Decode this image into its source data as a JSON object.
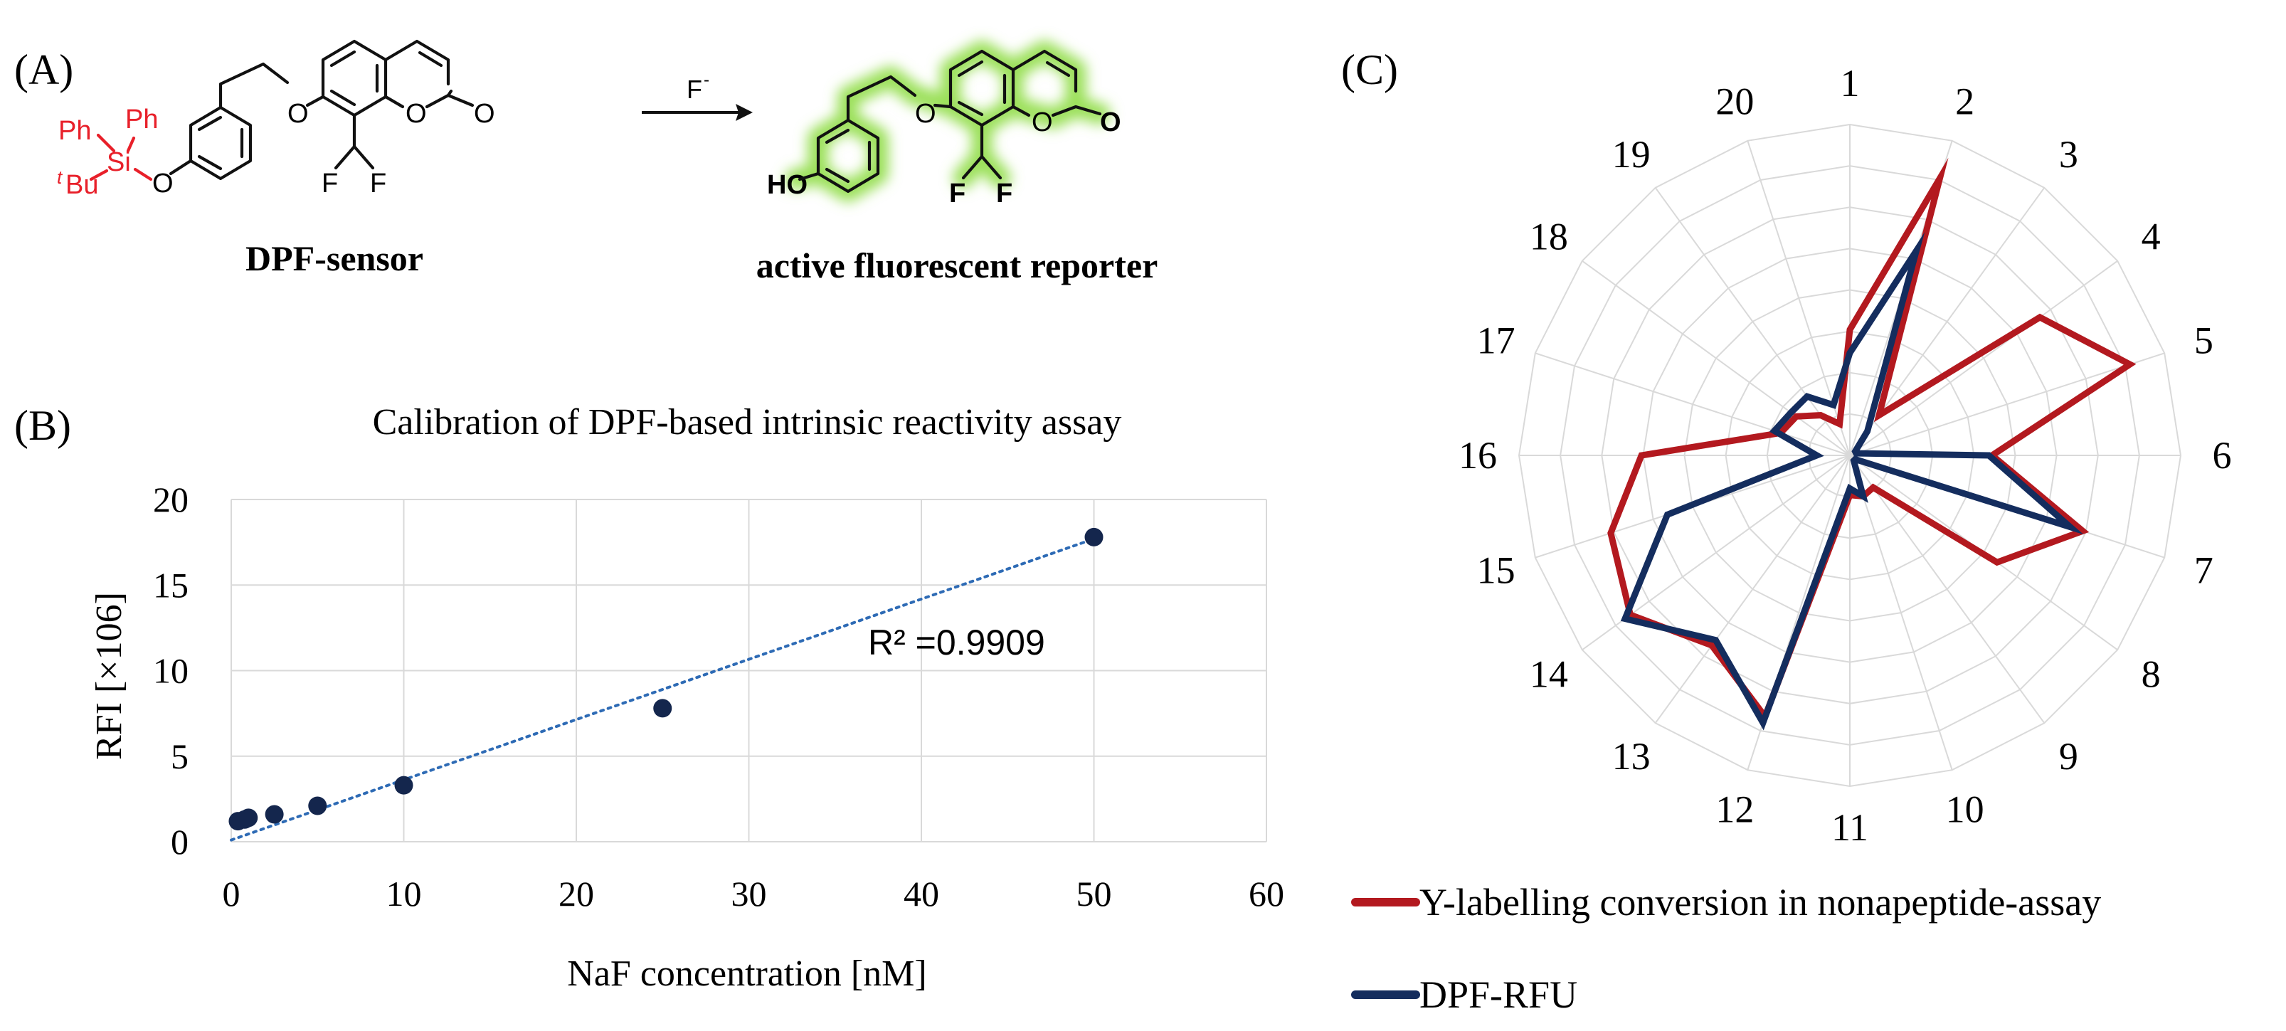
{
  "panels": {
    "a": {
      "label": "(A)",
      "ph1": "Ph",
      "ph2": "Ph",
      "si": "Si",
      "tbu_prefix": "t",
      "tbu": "Bu",
      "o_silyl": "O",
      "o_ether": "O",
      "o_ring": "O",
      "o_carbonyl": "O",
      "f1": "F",
      "f2": "F",
      "reagent": "F",
      "reagent_charge": "-",
      "ho": "HO",
      "o_ether_2": "O",
      "o_ring_2": "O",
      "o_carbonyl_2": "O",
      "f1_2": "F",
      "f2_2": "F",
      "sensor_name": "DPF-sensor",
      "reporter_name": "active fluorescent reporter",
      "colors": {
        "silyl_group": "#e8202a",
        "fluorescent_glow": "#9be05a"
      }
    },
    "b": {
      "label": "(B)"
    },
    "c": {
      "label": "(C)"
    }
  },
  "chart_data": [
    {
      "type": "scatter",
      "title": "Calibration of DPF-based intrinsic reactivity assay",
      "xlabel": "NaF concentration [nM]",
      "ylabel": "RFI [×106]",
      "xlim": [
        0,
        60
      ],
      "ylim": [
        0,
        20
      ],
      "xticks": [
        0,
        10,
        20,
        30,
        40,
        50,
        60
      ],
      "yticks": [
        0,
        5,
        10,
        15,
        20
      ],
      "grid": true,
      "annotation": "R² =0.9909",
      "points": [
        {
          "x": 0.39,
          "y": 1.2
        },
        {
          "x": 0.78,
          "y": 1.3
        },
        {
          "x": 1.0,
          "y": 1.4
        },
        {
          "x": 2.5,
          "y": 1.6
        },
        {
          "x": 5,
          "y": 2.1
        },
        {
          "x": 10,
          "y": 3.3
        },
        {
          "x": 25,
          "y": 7.8
        },
        {
          "x": 50,
          "y": 17.8
        }
      ],
      "trendline": {
        "style": "dotted",
        "from": {
          "x": 0,
          "y": 0.1
        },
        "to": {
          "x": 50,
          "y": 17.7
        }
      },
      "colors": {
        "points": "#14264d",
        "trendline": "#2e6bb5"
      }
    },
    {
      "type": "radar",
      "categories": [
        "1",
        "2",
        "3",
        "4",
        "5",
        "6",
        "7",
        "8",
        "9",
        "10",
        "11",
        "12",
        "13",
        "14",
        "15",
        "16",
        "17",
        "18",
        "19",
        "20"
      ],
      "rlim": [
        0,
        1
      ],
      "ring_count": 8,
      "legend_position": "bottom",
      "series": [
        {
          "name": "Y-labelling conversion in nonapeptide-assay",
          "color": "#b3191f",
          "values": [
            0.38,
            0.88,
            0.15,
            0.71,
            0.89,
            0.43,
            0.74,
            0.55,
            0.12,
            0.13,
            0.12,
            0.83,
            0.71,
            0.82,
            0.76,
            0.63,
            0.22,
            0.2,
            0.15,
            0.1
          ]
        },
        {
          "name": "DPF-RFU",
          "color": "#142d5e",
          "values": [
            0.31,
            0.65,
            0.09,
            0.02,
            0.02,
            0.42,
            0.7,
            0.02,
            0.02,
            0.13,
            0.1,
            0.85,
            0.69,
            0.84,
            0.58,
            0.1,
            0.24,
            0.22,
            0.22,
            0.16
          ]
        }
      ]
    }
  ]
}
